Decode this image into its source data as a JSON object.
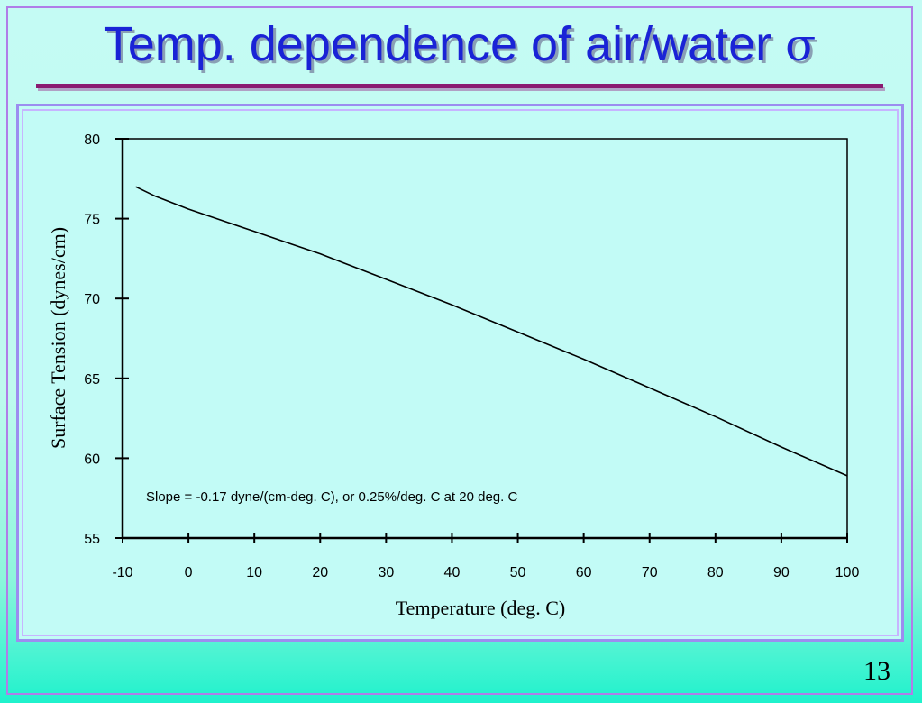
{
  "slide": {
    "title_text": "Temp. dependence of air/water ",
    "title_symbol": "σ",
    "page_number": "13"
  },
  "chart_data": {
    "type": "line",
    "title": "",
    "xlabel": "Temperature (deg. C)",
    "ylabel": "Surface Tension (dynes/cm)",
    "xlim": [
      -10,
      100
    ],
    "ylim": [
      55,
      80
    ],
    "x_ticks": [
      -10,
      0,
      10,
      20,
      30,
      40,
      50,
      60,
      70,
      80,
      90,
      100
    ],
    "y_ticks": [
      55,
      60,
      65,
      70,
      75,
      80
    ],
    "grid": false,
    "legend": "none",
    "annotation": "Slope = -0.17 dyne/(cm-deg. C), or 0.25%/deg. C at 20 deg. C",
    "series": [
      {
        "x": [
          -8,
          -5,
          0,
          5,
          10,
          15,
          20,
          25,
          30,
          40,
          50,
          60,
          70,
          80,
          90,
          100
        ],
        "y": [
          77.0,
          76.4,
          75.6,
          74.9,
          74.2,
          73.5,
          72.8,
          72.0,
          71.2,
          69.6,
          67.9,
          66.2,
          64.4,
          62.6,
          60.7,
          58.9
        ]
      }
    ]
  }
}
